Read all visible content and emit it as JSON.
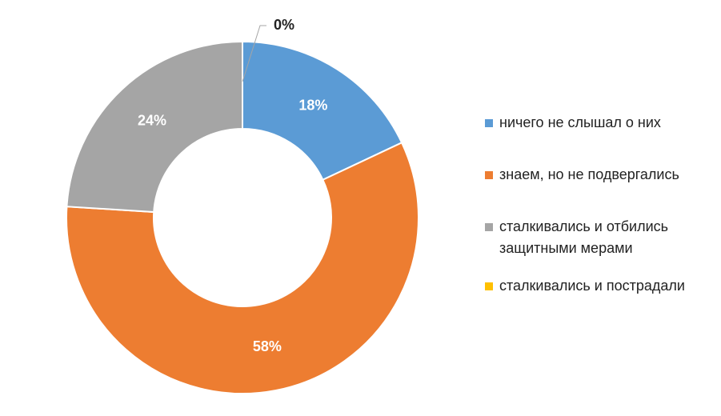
{
  "chart_data": {
    "type": "donut",
    "categories": [
      "ничего не слышал о них",
      "знаем, но не подвергались",
      "сталкивались и отбились защитными мерами",
      "сталкивались и пострадали"
    ],
    "values": [
      18,
      58,
      24,
      0
    ],
    "value_labels": [
      "18%",
      "58%",
      "24%",
      "0%"
    ],
    "colors": [
      "#5b9bd5",
      "#ed7d31",
      "#a5a5a5",
      "#ffc000"
    ],
    "legend": "right"
  }
}
